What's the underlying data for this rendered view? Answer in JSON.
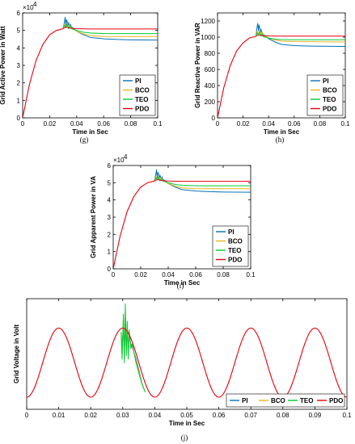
{
  "chart_data": [
    {
      "type": "line",
      "caption": "(g)",
      "ylabel": "Grid Active Power in Watt",
      "xlabel": "Time in Sec",
      "exponent_label": "×10",
      "exponent_power": "4",
      "xlim": [
        0,
        0.1
      ],
      "ylim": [
        0,
        6
      ],
      "x_ticks": [
        "0",
        "0.02",
        "0.04",
        "0.06",
        "0.08",
        "0.1"
      ],
      "y_ticks": [
        "0",
        "1",
        "2",
        "3",
        "4",
        "5",
        "6"
      ],
      "legend_position": "bottom-right",
      "rise": {
        "x": [
          0,
          0.005,
          0.01,
          0.015,
          0.02,
          0.025,
          0.03
        ],
        "y": [
          0,
          1.9,
          3.3,
          4.2,
          4.75,
          5.0,
          5.1
        ]
      },
      "series": [
        {
          "name": "PI",
          "color": "#0072BD",
          "x": [
            0.03,
            0.031,
            0.0315,
            0.032,
            0.0325,
            0.033,
            0.0335,
            0.034,
            0.0345,
            0.035,
            0.0355,
            0.036,
            0.037,
            0.038,
            0.04,
            0.045,
            0.05,
            0.06,
            0.07,
            0.08,
            0.1
          ],
          "y": [
            5.1,
            5.5,
            5.75,
            5.3,
            5.6,
            5.5,
            5.2,
            5.45,
            5.3,
            5.25,
            5.35,
            5.2,
            5.15,
            5.1,
            4.95,
            4.75,
            4.6,
            4.52,
            4.48,
            4.46,
            4.45
          ]
        },
        {
          "name": "BCO",
          "color": "#EDB120",
          "x": [
            0.03,
            0.031,
            0.032,
            0.033,
            0.034,
            0.035,
            0.036,
            0.04,
            0.045,
            0.05,
            0.06,
            0.08,
            0.1
          ],
          "y": [
            5.1,
            5.35,
            5.2,
            5.4,
            5.15,
            5.3,
            5.15,
            4.95,
            4.8,
            4.7,
            4.65,
            4.65,
            4.65
          ]
        },
        {
          "name": "TEO",
          "color": "#00CC33",
          "x": [
            0.03,
            0.031,
            0.032,
            0.033,
            0.034,
            0.035,
            0.036,
            0.04,
            0.045,
            0.05,
            0.06,
            0.08,
            0.1
          ],
          "y": [
            5.1,
            5.3,
            5.15,
            5.35,
            5.1,
            5.25,
            5.1,
            5.0,
            4.9,
            4.85,
            4.82,
            4.82,
            4.82
          ]
        },
        {
          "name": "PDO",
          "color": "#E8000B",
          "x": [
            0.03,
            0.032,
            0.034,
            0.036,
            0.04,
            0.05,
            0.06,
            0.08,
            0.1
          ],
          "y": [
            5.1,
            5.2,
            5.15,
            5.12,
            5.1,
            5.08,
            5.08,
            5.08,
            5.08
          ]
        }
      ]
    },
    {
      "type": "line",
      "caption": "(h)",
      "ylabel": "Grid Reactive Power in VAR",
      "xlabel": "Time in Sec",
      "exponent_label": "",
      "exponent_power": "",
      "xlim": [
        0,
        0.1
      ],
      "ylim": [
        0,
        1300
      ],
      "x_ticks": [
        "0",
        "0.02",
        "0.04",
        "0.06",
        "0.08",
        "0.1"
      ],
      "y_ticks": [
        "0",
        "200",
        "400",
        "600",
        "800",
        "1000",
        "1200"
      ],
      "legend_position": "bottom-right",
      "rise": {
        "x": [
          0,
          0.005,
          0.01,
          0.015,
          0.02,
          0.025,
          0.03
        ],
        "y": [
          0,
          380,
          650,
          830,
          930,
          990,
          1010
        ]
      },
      "series": [
        {
          "name": "PI",
          "color": "#0072BD",
          "x": [
            0.03,
            0.031,
            0.0315,
            0.032,
            0.0325,
            0.033,
            0.0335,
            0.034,
            0.0345,
            0.035,
            0.036,
            0.038,
            0.04,
            0.045,
            0.05,
            0.06,
            0.07,
            0.08,
            0.1
          ],
          "y": [
            1010,
            1130,
            1170,
            1080,
            1150,
            1110,
            1040,
            1100,
            1060,
            1050,
            1030,
            1010,
            980,
            940,
            910,
            895,
            890,
            888,
            885
          ]
        },
        {
          "name": "BCO",
          "color": "#EDB120",
          "x": [
            0.03,
            0.031,
            0.032,
            0.033,
            0.034,
            0.035,
            0.036,
            0.04,
            0.045,
            0.05,
            0.06,
            0.08,
            0.1
          ],
          "y": [
            1010,
            1080,
            1030,
            1090,
            1030,
            1060,
            1020,
            990,
            965,
            950,
            945,
            942,
            940
          ]
        },
        {
          "name": "TEO",
          "color": "#00CC33",
          "x": [
            0.03,
            0.031,
            0.032,
            0.033,
            0.034,
            0.035,
            0.036,
            0.04,
            0.045,
            0.05,
            0.06,
            0.08,
            0.1
          ],
          "y": [
            1010,
            1060,
            1020,
            1070,
            1015,
            1040,
            1005,
            990,
            975,
            970,
            968,
            968,
            968
          ]
        },
        {
          "name": "PDO",
          "color": "#E8000B",
          "x": [
            0.03,
            0.032,
            0.034,
            0.036,
            0.04,
            0.05,
            0.06,
            0.08,
            0.1
          ],
          "y": [
            1010,
            1030,
            1020,
            1018,
            1015,
            1012,
            1012,
            1012,
            1012
          ]
        }
      ]
    },
    {
      "type": "line",
      "caption": "(i)",
      "ylabel": "Grid Apparent Power in VA",
      "xlabel": "Time in Sec",
      "exponent_label": "×10",
      "exponent_power": "4",
      "xlim": [
        0,
        0.1
      ],
      "ylim": [
        0,
        6
      ],
      "x_ticks": [
        "0",
        "0.02",
        "0.04",
        "0.06",
        "0.08",
        "0.1"
      ],
      "y_ticks": [
        "0",
        "1",
        "2",
        "3",
        "4",
        "5",
        "6"
      ],
      "legend_position": "bottom-right",
      "rise": {
        "x": [
          0,
          0.005,
          0.01,
          0.015,
          0.02,
          0.025,
          0.03
        ],
        "y": [
          0,
          1.9,
          3.3,
          4.2,
          4.75,
          5.0,
          5.1
        ]
      },
      "series": [
        {
          "name": "PI",
          "color": "#0072BD",
          "x": [
            0.03,
            0.031,
            0.0315,
            0.032,
            0.0325,
            0.033,
            0.0335,
            0.034,
            0.0345,
            0.035,
            0.0355,
            0.036,
            0.037,
            0.038,
            0.04,
            0.045,
            0.05,
            0.06,
            0.07,
            0.08,
            0.1
          ],
          "y": [
            5.1,
            5.5,
            5.75,
            5.3,
            5.6,
            5.5,
            5.2,
            5.45,
            5.3,
            5.25,
            5.35,
            5.2,
            5.15,
            5.1,
            4.95,
            4.75,
            4.6,
            4.52,
            4.48,
            4.46,
            4.45
          ]
        },
        {
          "name": "BCO",
          "color": "#EDB120",
          "x": [
            0.03,
            0.031,
            0.032,
            0.033,
            0.034,
            0.035,
            0.036,
            0.04,
            0.045,
            0.05,
            0.06,
            0.08,
            0.1
          ],
          "y": [
            5.1,
            5.35,
            5.2,
            5.4,
            5.15,
            5.3,
            5.15,
            4.95,
            4.8,
            4.7,
            4.65,
            4.65,
            4.65
          ]
        },
        {
          "name": "TEO",
          "color": "#00CC33",
          "x": [
            0.03,
            0.031,
            0.032,
            0.033,
            0.034,
            0.035,
            0.036,
            0.04,
            0.045,
            0.05,
            0.06,
            0.08,
            0.1
          ],
          "y": [
            5.1,
            5.3,
            5.15,
            5.35,
            5.1,
            5.25,
            5.1,
            5.0,
            4.9,
            4.85,
            4.82,
            4.82,
            4.82
          ]
        },
        {
          "name": "PDO",
          "color": "#E8000B",
          "x": [
            0.03,
            0.032,
            0.034,
            0.036,
            0.04,
            0.05,
            0.06,
            0.08,
            0.1
          ],
          "y": [
            5.1,
            5.2,
            5.15,
            5.12,
            5.1,
            5.08,
            5.08,
            5.08,
            5.08
          ]
        }
      ]
    },
    {
      "type": "line",
      "caption": "(j)",
      "ylabel": "Grid Voltage in Volt",
      "xlabel": "Time in Sec",
      "exponent_label": "",
      "exponent_power": "",
      "xlim": [
        0,
        0.1
      ],
      "ylim": [
        -1.35,
        1.85
      ],
      "x_ticks": [
        "0",
        "0.01",
        "0.02",
        "0.03",
        "0.04",
        "0.05",
        "0.06",
        "0.07",
        "0.08",
        "0.09",
        "0.1"
      ],
      "y_ticks": [],
      "legend_position": "bottom-right",
      "base_wave": {
        "frequency_hz": 50,
        "amplitude": 1,
        "phase": "-cos"
      },
      "series": [
        {
          "name": "PI",
          "color": "#0072BD",
          "x": [
            0.0295,
            0.0298,
            0.0302,
            0.0305,
            0.0308,
            0.0311,
            0.0314,
            0.0317,
            0.032,
            0.0325,
            0.033,
            0.034,
            0.035,
            0.036,
            0.037
          ],
          "y": [
            0.88,
            0.4,
            1.1,
            0.3,
            1.2,
            0.5,
            0.9,
            0.35,
            0.85,
            0.55,
            0.45,
            0.15,
            -0.2,
            -0.6,
            -0.85
          ]
        },
        {
          "name": "BCO",
          "color": "#EDB120",
          "x": [
            0.0295,
            0.0298,
            0.0302,
            0.0305,
            0.0308,
            0.0311,
            0.0314,
            0.0317,
            0.032,
            0.0325,
            0.033,
            0.034,
            0.035,
            0.036,
            0.037
          ],
          "y": [
            0.88,
            0.2,
            1.3,
            0.1,
            1.55,
            0.3,
            1.1,
            0.2,
            0.9,
            0.45,
            0.5,
            0.1,
            -0.25,
            -0.6,
            -0.85
          ]
        },
        {
          "name": "TEO",
          "color": "#00CC33",
          "x": [
            0.0295,
            0.0298,
            0.0302,
            0.0305,
            0.0308,
            0.0311,
            0.0314,
            0.0317,
            0.032,
            0.0325,
            0.033,
            0.034,
            0.035,
            0.036,
            0.037
          ],
          "y": [
            0.88,
            0.1,
            1.4,
            0.0,
            1.7,
            0.2,
            1.2,
            0.1,
            0.95,
            0.4,
            0.55,
            0.05,
            -0.3,
            -0.62,
            -0.85
          ]
        },
        {
          "name": "PDO",
          "color": "#E8000B",
          "x": [],
          "y": []
        }
      ]
    }
  ]
}
